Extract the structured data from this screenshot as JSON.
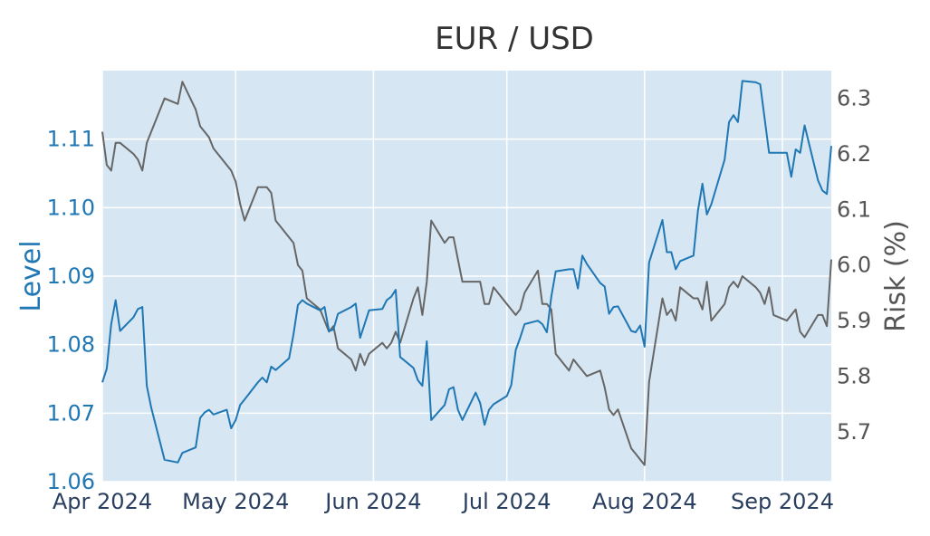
{
  "chart_data": {
    "type": "line",
    "title": "EUR / USD",
    "xlabel": "",
    "x_ticks": [
      "Apr 2024",
      "May 2024",
      "Jun 2024",
      "Jul 2024",
      "Aug 2024",
      "Sep 2024"
    ],
    "x_tick_dates": [
      "2024-04-01",
      "2024-05-01",
      "2024-06-01",
      "2024-07-01",
      "2024-08-01",
      "2024-09-01"
    ],
    "xlim": [
      "2024-04-01",
      "2024-09-12"
    ],
    "ylabel_left": "Level",
    "ylim_left": [
      1.06,
      1.12
    ],
    "yticks_left": [
      "1.06",
      "1.07",
      "1.08",
      "1.09",
      "1.10",
      "1.11"
    ],
    "ylabel_right": "Risk (%)",
    "ylim_right": [
      5.61,
      6.35
    ],
    "yticks_right": [
      "5.7",
      "5.8",
      "5.9",
      "6.0",
      "6.1",
      "6.2",
      "6.3"
    ],
    "grid": true,
    "plot_background": "#d6e6f2",
    "series": [
      {
        "axis": "left",
        "color": "#1f77b4",
        "points": [
          [
            "2024-04-01",
            1.0745
          ],
          [
            "2024-04-02",
            1.0765
          ],
          [
            "2024-04-03",
            1.083
          ],
          [
            "2024-04-04",
            1.0865
          ],
          [
            "2024-04-05",
            1.082
          ],
          [
            "2024-04-08",
            1.084
          ],
          [
            "2024-04-09",
            1.0852
          ],
          [
            "2024-04-10",
            1.0855
          ],
          [
            "2024-04-11",
            1.074
          ],
          [
            "2024-04-12",
            1.0708
          ],
          [
            "2024-04-15",
            1.0632
          ],
          [
            "2024-04-18",
            1.0628
          ],
          [
            "2024-04-19",
            1.0642
          ],
          [
            "2024-04-22",
            1.065
          ],
          [
            "2024-04-23",
            1.0693
          ],
          [
            "2024-04-24",
            1.0701
          ],
          [
            "2024-04-25",
            1.0705
          ],
          [
            "2024-04-26",
            1.0698
          ],
          [
            "2024-04-29",
            1.0705
          ],
          [
            "2024-04-30",
            1.0678
          ],
          [
            "2024-05-01",
            1.069
          ],
          [
            "2024-05-02",
            1.0712
          ],
          [
            "2024-05-03",
            1.072
          ],
          [
            "2024-05-06",
            1.0745
          ],
          [
            "2024-05-07",
            1.0752
          ],
          [
            "2024-05-08",
            1.0745
          ],
          [
            "2024-05-09",
            1.0768
          ],
          [
            "2024-05-10",
            1.0763
          ],
          [
            "2024-05-13",
            1.078
          ],
          [
            "2024-05-14",
            1.0815
          ],
          [
            "2024-05-15",
            1.0858
          ],
          [
            "2024-05-16",
            1.0865
          ],
          [
            "2024-05-17",
            1.086
          ],
          [
            "2024-05-20",
            1.085
          ],
          [
            "2024-05-21",
            1.0855
          ],
          [
            "2024-05-22",
            1.082
          ],
          [
            "2024-05-23",
            1.0822
          ],
          [
            "2024-05-24",
            1.0845
          ],
          [
            "2024-05-27",
            1.0855
          ],
          [
            "2024-05-28",
            1.086
          ],
          [
            "2024-05-29",
            1.081
          ],
          [
            "2024-05-30",
            1.083
          ],
          [
            "2024-05-31",
            1.085
          ],
          [
            "2024-06-03",
            1.0852
          ],
          [
            "2024-06-04",
            1.0865
          ],
          [
            "2024-06-05",
            1.087
          ],
          [
            "2024-06-06",
            1.088
          ],
          [
            "2024-06-07",
            1.0782
          ],
          [
            "2024-06-10",
            1.0766
          ],
          [
            "2024-06-11",
            1.0748
          ],
          [
            "2024-06-12",
            1.074
          ],
          [
            "2024-06-13",
            1.0805
          ],
          [
            "2024-06-14",
            1.069
          ],
          [
            "2024-06-17",
            1.0712
          ],
          [
            "2024-06-18",
            1.0735
          ],
          [
            "2024-06-19",
            1.0738
          ],
          [
            "2024-06-20",
            1.0705
          ],
          [
            "2024-06-21",
            1.069
          ],
          [
            "2024-06-24",
            1.073
          ],
          [
            "2024-06-25",
            1.0715
          ],
          [
            "2024-06-26",
            1.0683
          ],
          [
            "2024-06-27",
            1.0705
          ],
          [
            "2024-06-28",
            1.0713
          ],
          [
            "2024-07-01",
            1.0725
          ],
          [
            "2024-07-02",
            1.0741
          ],
          [
            "2024-07-03",
            1.0792
          ],
          [
            "2024-07-04",
            1.081
          ],
          [
            "2024-07-05",
            1.083
          ],
          [
            "2024-07-08",
            1.0835
          ],
          [
            "2024-07-09",
            1.083
          ],
          [
            "2024-07-10",
            1.0818
          ],
          [
            "2024-07-11",
            1.087
          ],
          [
            "2024-07-12",
            1.0907
          ],
          [
            "2024-07-15",
            1.091
          ],
          [
            "2024-07-16",
            1.091
          ],
          [
            "2024-07-17",
            1.0882
          ],
          [
            "2024-07-18",
            1.093
          ],
          [
            "2024-07-19",
            1.0918
          ],
          [
            "2024-07-22",
            1.089
          ],
          [
            "2024-07-23",
            1.0885
          ],
          [
            "2024-07-24",
            1.0845
          ],
          [
            "2024-07-25",
            1.0855
          ],
          [
            "2024-07-26",
            1.0856
          ],
          [
            "2024-07-29",
            1.082
          ],
          [
            "2024-07-30",
            1.0818
          ],
          [
            "2024-07-31",
            1.0828
          ],
          [
            "2024-08-01",
            1.0797
          ],
          [
            "2024-08-02",
            1.092
          ],
          [
            "2024-08-05",
            1.0982
          ],
          [
            "2024-08-06",
            1.0935
          ],
          [
            "2024-08-07",
            1.0935
          ],
          [
            "2024-08-08",
            1.091
          ],
          [
            "2024-08-09",
            1.0922
          ],
          [
            "2024-08-12",
            1.093
          ],
          [
            "2024-08-13",
            1.0995
          ],
          [
            "2024-08-14",
            1.1035
          ],
          [
            "2024-08-15",
            1.099
          ],
          [
            "2024-08-16",
            1.1005
          ],
          [
            "2024-08-19",
            1.107
          ],
          [
            "2024-08-20",
            1.1125
          ],
          [
            "2024-08-21",
            1.1135
          ],
          [
            "2024-08-22",
            1.1125
          ],
          [
            "2024-08-23",
            1.1185
          ],
          [
            "2024-08-26",
            1.1183
          ],
          [
            "2024-08-27",
            1.118
          ],
          [
            "2024-08-28",
            1.113
          ],
          [
            "2024-08-29",
            1.108
          ],
          [
            "2024-08-30",
            1.108
          ],
          [
            "2024-09-02",
            1.108
          ],
          [
            "2024-09-03",
            1.1045
          ],
          [
            "2024-09-04",
            1.1085
          ],
          [
            "2024-09-05",
            1.108
          ],
          [
            "2024-09-06",
            1.112
          ],
          [
            "2024-09-09",
            1.104
          ],
          [
            "2024-09-10",
            1.1025
          ],
          [
            "2024-09-11",
            1.102
          ],
          [
            "2024-09-12",
            1.109
          ]
        ]
      },
      {
        "axis": "right",
        "color": "#666666",
        "points": [
          [
            "2024-04-01",
            6.24
          ],
          [
            "2024-04-02",
            6.18
          ],
          [
            "2024-04-03",
            6.17
          ],
          [
            "2024-04-04",
            6.22
          ],
          [
            "2024-04-05",
            6.22
          ],
          [
            "2024-04-08",
            6.2
          ],
          [
            "2024-04-09",
            6.19
          ],
          [
            "2024-04-10",
            6.17
          ],
          [
            "2024-04-11",
            6.22
          ],
          [
            "2024-04-12",
            6.24
          ],
          [
            "2024-04-15",
            6.3
          ],
          [
            "2024-04-18",
            6.29
          ],
          [
            "2024-04-19",
            6.33
          ],
          [
            "2024-04-22",
            6.28
          ],
          [
            "2024-04-23",
            6.25
          ],
          [
            "2024-04-24",
            6.24
          ],
          [
            "2024-04-25",
            6.23
          ],
          [
            "2024-04-26",
            6.21
          ],
          [
            "2024-04-29",
            6.18
          ],
          [
            "2024-04-30",
            6.17
          ],
          [
            "2024-05-01",
            6.15
          ],
          [
            "2024-05-02",
            6.11
          ],
          [
            "2024-05-03",
            6.08
          ],
          [
            "2024-05-06",
            6.14
          ],
          [
            "2024-05-07",
            6.14
          ],
          [
            "2024-05-08",
            6.14
          ],
          [
            "2024-05-09",
            6.13
          ],
          [
            "2024-05-10",
            6.08
          ],
          [
            "2024-05-13",
            6.05
          ],
          [
            "2024-05-14",
            6.04
          ],
          [
            "2024-05-15",
            6.0
          ],
          [
            "2024-05-16",
            5.99
          ],
          [
            "2024-05-17",
            5.94
          ],
          [
            "2024-05-20",
            5.92
          ],
          [
            "2024-05-21",
            5.9
          ],
          [
            "2024-05-22",
            5.88
          ],
          [
            "2024-05-23",
            5.89
          ],
          [
            "2024-05-24",
            5.85
          ],
          [
            "2024-05-27",
            5.83
          ],
          [
            "2024-05-28",
            5.81
          ],
          [
            "2024-05-29",
            5.84
          ],
          [
            "2024-05-30",
            5.82
          ],
          [
            "2024-05-31",
            5.84
          ],
          [
            "2024-06-03",
            5.86
          ],
          [
            "2024-06-04",
            5.85
          ],
          [
            "2024-06-05",
            5.86
          ],
          [
            "2024-06-06",
            5.88
          ],
          [
            "2024-06-07",
            5.86
          ],
          [
            "2024-06-10",
            5.94
          ],
          [
            "2024-06-11",
            5.96
          ],
          [
            "2024-06-12",
            5.91
          ],
          [
            "2024-06-13",
            5.97
          ],
          [
            "2024-06-14",
            6.08
          ],
          [
            "2024-06-17",
            6.04
          ],
          [
            "2024-06-18",
            6.05
          ],
          [
            "2024-06-19",
            6.05
          ],
          [
            "2024-06-20",
            6.01
          ],
          [
            "2024-06-21",
            5.97
          ],
          [
            "2024-06-24",
            5.97
          ],
          [
            "2024-06-25",
            5.97
          ],
          [
            "2024-06-26",
            5.93
          ],
          [
            "2024-06-27",
            5.93
          ],
          [
            "2024-06-28",
            5.96
          ],
          [
            "2024-07-01",
            5.93
          ],
          [
            "2024-07-02",
            5.92
          ],
          [
            "2024-07-03",
            5.91
          ],
          [
            "2024-07-04",
            5.92
          ],
          [
            "2024-07-05",
            5.95
          ],
          [
            "2024-07-08",
            5.99
          ],
          [
            "2024-07-09",
            5.93
          ],
          [
            "2024-07-10",
            5.93
          ],
          [
            "2024-07-11",
            5.92
          ],
          [
            "2024-07-12",
            5.84
          ],
          [
            "2024-07-15",
            5.81
          ],
          [
            "2024-07-16",
            5.83
          ],
          [
            "2024-07-17",
            5.82
          ],
          [
            "2024-07-18",
            5.81
          ],
          [
            "2024-07-19",
            5.8
          ],
          [
            "2024-07-22",
            5.81
          ],
          [
            "2024-07-23",
            5.78
          ],
          [
            "2024-07-24",
            5.74
          ],
          [
            "2024-07-25",
            5.73
          ],
          [
            "2024-07-26",
            5.74
          ],
          [
            "2024-07-29",
            5.67
          ],
          [
            "2024-07-30",
            5.66
          ],
          [
            "2024-07-31",
            5.65
          ],
          [
            "2024-08-01",
            5.64
          ],
          [
            "2024-08-02",
            5.79
          ],
          [
            "2024-08-05",
            5.94
          ],
          [
            "2024-08-06",
            5.91
          ],
          [
            "2024-08-07",
            5.92
          ],
          [
            "2024-08-08",
            5.9
          ],
          [
            "2024-08-09",
            5.96
          ],
          [
            "2024-08-12",
            5.94
          ],
          [
            "2024-08-13",
            5.94
          ],
          [
            "2024-08-14",
            5.92
          ],
          [
            "2024-08-15",
            5.97
          ],
          [
            "2024-08-16",
            5.9
          ],
          [
            "2024-08-19",
            5.93
          ],
          [
            "2024-08-20",
            5.96
          ],
          [
            "2024-08-21",
            5.97
          ],
          [
            "2024-08-22",
            5.96
          ],
          [
            "2024-08-23",
            5.98
          ],
          [
            "2024-08-26",
            5.96
          ],
          [
            "2024-08-27",
            5.95
          ],
          [
            "2024-08-28",
            5.93
          ],
          [
            "2024-08-29",
            5.96
          ],
          [
            "2024-08-30",
            5.91
          ],
          [
            "2024-09-02",
            5.9
          ],
          [
            "2024-09-03",
            5.91
          ],
          [
            "2024-09-04",
            5.92
          ],
          [
            "2024-09-05",
            5.88
          ],
          [
            "2024-09-06",
            5.87
          ],
          [
            "2024-09-09",
            5.91
          ],
          [
            "2024-09-10",
            5.91
          ],
          [
            "2024-09-11",
            5.89
          ],
          [
            "2024-09-12",
            6.01
          ]
        ]
      }
    ]
  }
}
